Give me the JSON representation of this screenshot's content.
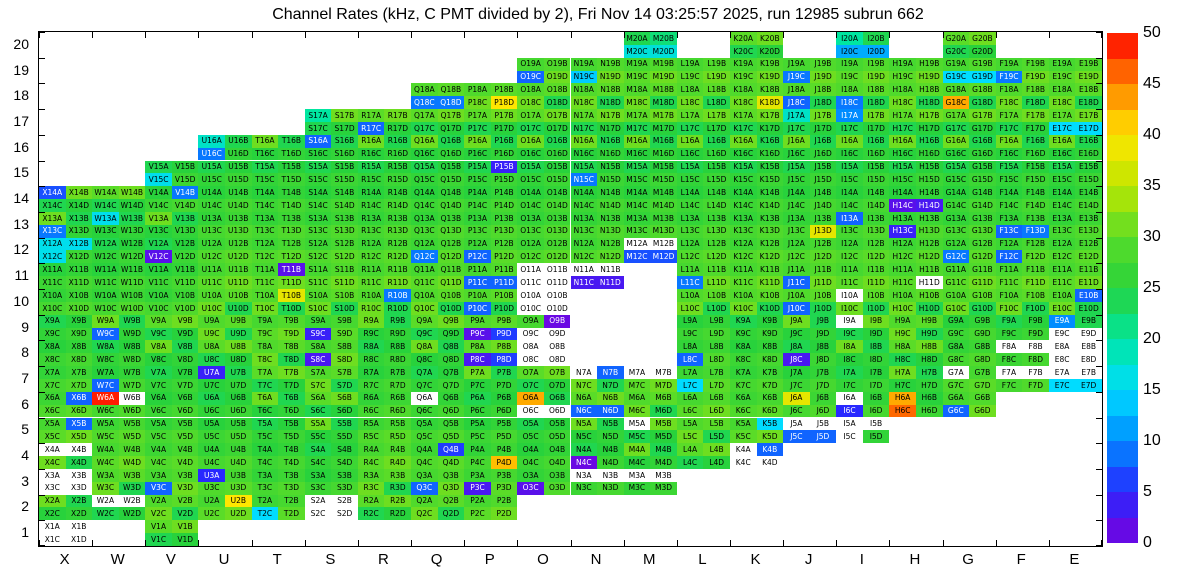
{
  "title": "Channel Rates (kHz, C PMT divided by 2), Fri Nov 14 03:25:57 2025, run 12985 subrun 662",
  "chart_data": {
    "type": "heatmap",
    "title": "Channel Rates (kHz, C PMT divided by 2), Fri Nov 14 03:25:57 2025, run 12985 subrun 662",
    "xlabel": "",
    "ylabel": "",
    "zlim": [
      0,
      50
    ],
    "colorbar_ticks": [
      0,
      5,
      10,
      15,
      20,
      25,
      30,
      35,
      40,
      45,
      50
    ],
    "columns": [
      "X",
      "W",
      "V",
      "U",
      "T",
      "S",
      "R",
      "Q",
      "P",
      "O",
      "N",
      "M",
      "L",
      "K",
      "J",
      "I",
      "H",
      "G",
      "F",
      "E"
    ],
    "rows": [
      20,
      19,
      18,
      17,
      16,
      15,
      14,
      13,
      12,
      11,
      10,
      9,
      8,
      7,
      6,
      5,
      4,
      3,
      2,
      1
    ],
    "sub_channels": [
      "A",
      "B",
      "C",
      "D"
    ],
    "baseline_range": [
      24,
      31
    ],
    "present": {
      "20": [
        "M",
        "K",
        "I",
        "G"
      ],
      "19": [
        "O",
        "N",
        "M",
        "L",
        "K",
        "J",
        "I",
        "H",
        "G",
        "F",
        "E"
      ],
      "18": [
        "Q",
        "P",
        "O",
        "N",
        "M",
        "L",
        "K",
        "J",
        "I",
        "H",
        "G",
        "F",
        "E"
      ],
      "17": [
        "S",
        "R",
        "Q",
        "P",
        "O",
        "N",
        "M",
        "L",
        "K",
        "J",
        "I",
        "H",
        "G",
        "F",
        "E"
      ],
      "16": [
        "U",
        "T",
        "S",
        "R",
        "Q",
        "P",
        "O",
        "N",
        "M",
        "L",
        "K",
        "J",
        "I",
        "H",
        "G",
        "F",
        "E"
      ],
      "15": [
        "V",
        "U",
        "T",
        "S",
        "R",
        "Q",
        "P",
        "O",
        "N",
        "M",
        "L",
        "K",
        "J",
        "I",
        "H",
        "G",
        "F",
        "E"
      ],
      "14": [
        "X",
        "W",
        "V",
        "U",
        "T",
        "S",
        "R",
        "Q",
        "P",
        "O",
        "N",
        "M",
        "L",
        "K",
        "J",
        "I",
        "H",
        "G",
        "F",
        "E"
      ],
      "13": [
        "X",
        "W",
        "V",
        "U",
        "T",
        "S",
        "R",
        "Q",
        "P",
        "O",
        "N",
        "M",
        "L",
        "K",
        "J",
        "I",
        "H",
        "G",
        "F",
        "E"
      ],
      "12": [
        "X",
        "W",
        "V",
        "U",
        "T",
        "S",
        "R",
        "Q",
        "P",
        "O",
        "N",
        "M",
        "L",
        "K",
        "J",
        "I",
        "H",
        "G",
        "F",
        "E"
      ],
      "11": [
        "X",
        "W",
        "V",
        "U",
        "T",
        "S",
        "R",
        "Q",
        "P",
        "O",
        "N",
        "L",
        "K",
        "J",
        "I",
        "H",
        "G",
        "F",
        "E"
      ],
      "10": [
        "X",
        "W",
        "V",
        "U",
        "T",
        "S",
        "R",
        "Q",
        "P",
        "O",
        "L",
        "K",
        "J",
        "I",
        "H",
        "G",
        "F",
        "E"
      ],
      "9": [
        "X",
        "W",
        "V",
        "U",
        "T",
        "S",
        "R",
        "Q",
        "P",
        "O",
        "L",
        "K",
        "J",
        "I",
        "H",
        "G",
        "F",
        "E"
      ],
      "8": [
        "X",
        "W",
        "V",
        "U",
        "T",
        "S",
        "R",
        "Q",
        "P",
        "O",
        "L",
        "K",
        "J",
        "I",
        "H",
        "G",
        "F",
        "E"
      ],
      "7": [
        "X",
        "W",
        "V",
        "U",
        "T",
        "S",
        "R",
        "Q",
        "P",
        "O",
        "N",
        "M",
        "L",
        "K",
        "J",
        "I",
        "H",
        "G",
        "F",
        "E"
      ],
      "6": [
        "X",
        "W",
        "V",
        "U",
        "T",
        "S",
        "R",
        "Q",
        "P",
        "O",
        "N",
        "M",
        "L",
        "K",
        "J",
        "I",
        "H",
        "G"
      ],
      "5": [
        "X",
        "W",
        "V",
        "U",
        "T",
        "S",
        "R",
        "Q",
        "P",
        "O",
        "N",
        "M",
        "L",
        "K",
        "J",
        "I"
      ],
      "4": [
        "X",
        "W",
        "V",
        "U",
        "T",
        "S",
        "R",
        "Q",
        "P",
        "O",
        "N",
        "M",
        "L",
        "K"
      ],
      "3": [
        "X",
        "W",
        "V",
        "U",
        "T",
        "S",
        "R",
        "Q",
        "P",
        "O",
        "N",
        "M"
      ],
      "2": [
        "X",
        "W",
        "V",
        "U",
        "T",
        "S",
        "R",
        "Q",
        "P"
      ],
      "1": [
        "X",
        "V"
      ]
    },
    "values": {
      "M20A": 24,
      "M20B": 22,
      "M20C": 17,
      "M20D": 17,
      "I20A": 20,
      "I20B": 24,
      "I20C": 12,
      "I20D": 12,
      "O19C": 8,
      "N19C": 14,
      "J19C": 9,
      "G19C": 15,
      "G19D": 15,
      "F19C": 9,
      "Q18C": 9,
      "Q18D": 9,
      "P18D": 40,
      "K18D": 38,
      "J18C": 8,
      "I18C": 9,
      "G18C": 43,
      "S17A": 20,
      "R17C": 8,
      "J17A": 18,
      "I17A": 10,
      "E17C": 15,
      "E17D": 15,
      "S16A": 8,
      "U16A": 18,
      "U16C": 9,
      "V15C": 16,
      "N15C": 9,
      "P15B": 4,
      "X14A": 7,
      "V14B": 9,
      "H14C": 2,
      "H14D": 3,
      "W13A": 16,
      "X13C": 9,
      "J13D": 38,
      "I13A": 8,
      "H13C": 4,
      "F13C": 8,
      "F13D": 9,
      "X12A": 16,
      "X12B": 16,
      "X12C": 16,
      "V12C": 2,
      "Q12C": 9,
      "P12C": 8,
      "M12A": 0,
      "M12B": 0,
      "M12C": 7,
      "M12D": 7,
      "G12C": 9,
      "F12C": 8,
      "T11B": 2,
      "P11C": 8,
      "P11D": 8,
      "O11A": 0,
      "O11B": 0,
      "O11C": 0,
      "O11D": 0,
      "N11A": 0,
      "N11B": 0,
      "N11C": 3,
      "N11D": 3,
      "L11C": 9,
      "J11C": 8,
      "H11D": 0,
      "T10B": 38,
      "R10B": 9,
      "P10C": 8,
      "O10A": 0,
      "O10B": 0,
      "O10C": 0,
      "O10D": 0,
      "J10C": 8,
      "I10A": 0,
      "E10B": 8,
      "W9C": 8,
      "S9C": 4,
      "P9C": 2,
      "P9D": 6,
      "O9B": 1,
      "O9C": 0,
      "O9D": 0,
      "I9A": 0,
      "E9A": 10,
      "E9C": 0,
      "E9D": 0,
      "S8C": 3,
      "P8C": 3,
      "P8D": 6,
      "O8A": 0,
      "O8B": 0,
      "O8C": 0,
      "O8D": 0,
      "L8C": 8,
      "J8C": 3,
      "F8A": 0,
      "F8B": 0,
      "E8A": 0,
      "E8B": 0,
      "E8C": 0,
      "E8D": 0,
      "U7A": 4,
      "W7C": 8,
      "N7A": 0,
      "N7B": 8,
      "M7A": 0,
      "M7B": 0,
      "L7C": 15,
      "G7A": 0,
      "F7A": 0,
      "F7B": 0,
      "E7A": 0,
      "E7B": 0,
      "E7C": 15,
      "E7D": 15,
      "X6B": 8,
      "W6A": 49,
      "W6B": 0,
      "Q6A": 0,
      "O6A": 43,
      "O6C": 0,
      "O6D": 0,
      "N6C": 8,
      "N6D": 8,
      "J6A": 38,
      "I6A": 0,
      "I6C": 5,
      "H6A": 43,
      "H6C": 46,
      "G6C": 8,
      "X5B": 8,
      "M5A": 0,
      "K5B": 15,
      "J5A": 0,
      "J5B": 0,
      "J5C": 8,
      "J5D": 8,
      "I5A": 0,
      "I5B": 0,
      "I5C": 0,
      "I5D": 26,
      "X4A": 0,
      "X4B": 0,
      "Q4B": 6,
      "P4D": 42,
      "N4C": 1,
      "K4A": 0,
      "K4B": 8,
      "K4C": 0,
      "K4D": 0,
      "X3A": 0,
      "X3B": 0,
      "X3C": 0,
      "X3D": 0,
      "V3C": 8,
      "U3A": 5,
      "Q3C": 8,
      "P3C": 3,
      "O3C": 2,
      "N3A": 0,
      "N3B": 0,
      "M3A": 0,
      "M3B": 0,
      "W2A": 0,
      "W2B": 0,
      "U2B": 40,
      "T2C": 15,
      "S2A": 0,
      "S2B": 0,
      "S2C": 0,
      "S2D": 0,
      "X1A": 0,
      "X1B": 0,
      "X1C": 0,
      "X1D": 0
    }
  }
}
